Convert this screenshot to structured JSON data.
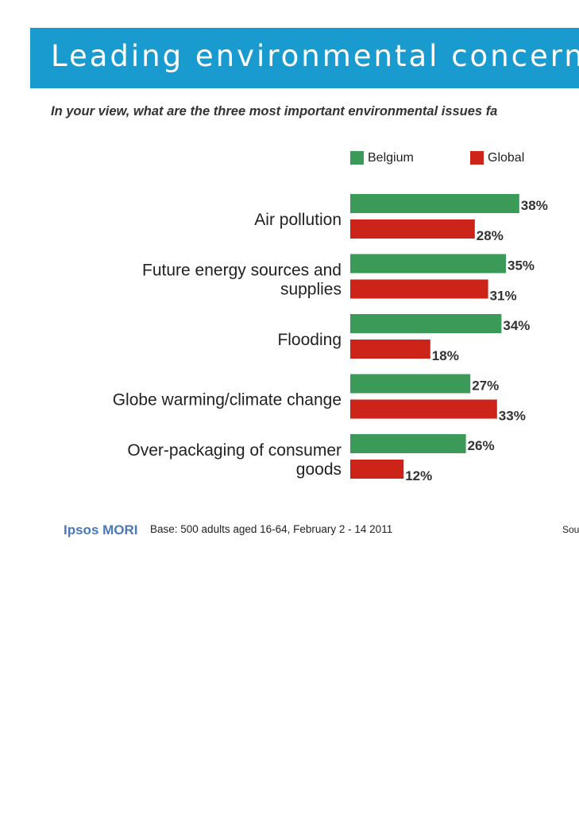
{
  "header": {
    "title": "Leading environmental concerns",
    "subtitle": "In your view, what are the three most important environmental issues fa"
  },
  "legend": {
    "belgium_label": "Belgium",
    "global_label": "Global"
  },
  "colors": {
    "banner": "#1a9bd0",
    "belgium": "#3b9a57",
    "global": "#cc2418"
  },
  "chart_data": {
    "type": "bar",
    "orientation": "horizontal",
    "categories": [
      [
        "Air pollution"
      ],
      [
        "Future energy sources and",
        "supplies"
      ],
      [
        "Flooding"
      ],
      [
        "Globe warming/climate change"
      ],
      [
        "Over-packaging of consumer",
        "goods"
      ]
    ],
    "series": [
      {
        "name": "Belgium",
        "values": [
          38,
          35,
          34,
          27,
          26
        ],
        "labels": [
          "38%",
          "35%",
          "34%",
          "27%",
          "26%"
        ]
      },
      {
        "name": "Global",
        "values": [
          28,
          31,
          18,
          33,
          12
        ],
        "labels": [
          "28%",
          "31%",
          "18%",
          "33%",
          "12%"
        ]
      }
    ],
    "unit": "%",
    "legend_position": "top-right",
    "grid": false
  },
  "footer": {
    "logo": "Ipsos MORI",
    "base": "Base: 500 adults aged 16-64, February 2 - 14 2011",
    "source": "Sou"
  }
}
